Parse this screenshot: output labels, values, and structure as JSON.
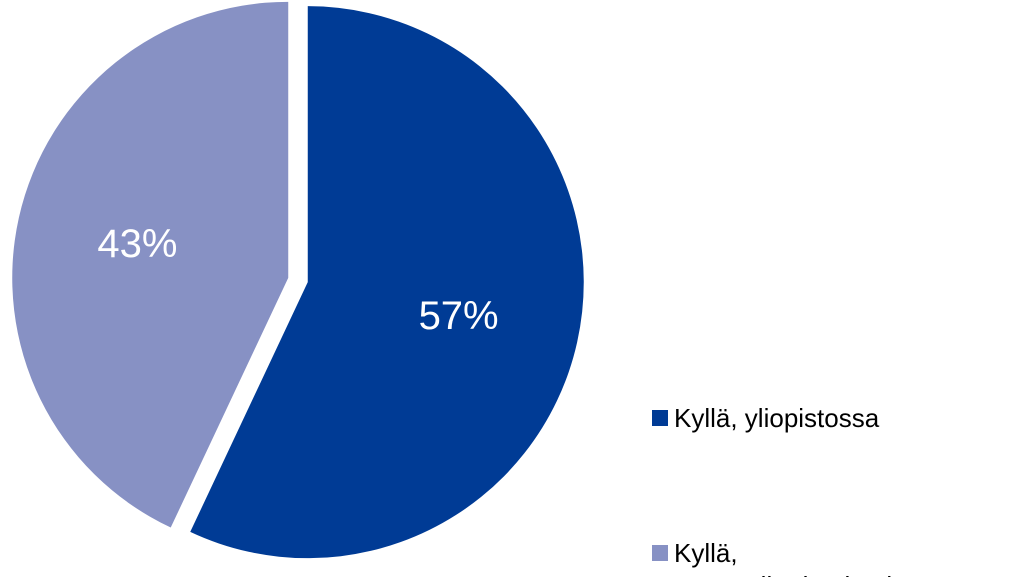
{
  "chart_data": {
    "type": "pie",
    "categories": [
      "Kyllä, yliopistossa",
      "Kyllä, ammattikorkeakoulussa"
    ],
    "values": [
      57,
      43
    ],
    "value_labels": [
      "57%",
      "43%"
    ],
    "colors": [
      "#003b95",
      "#8791c4"
    ],
    "exploded": true,
    "start_angle": "12 o'clock, clockwise",
    "legend": {
      "placement": "right-bottom",
      "entries": [
        {
          "lines": [
            "Kyllä, yliopistossa"
          ],
          "color": "#003b95"
        },
        {
          "lines": [
            "Kyllä,",
            "ammattikorkeakoulussa"
          ],
          "color": "#8791c4"
        }
      ]
    }
  }
}
